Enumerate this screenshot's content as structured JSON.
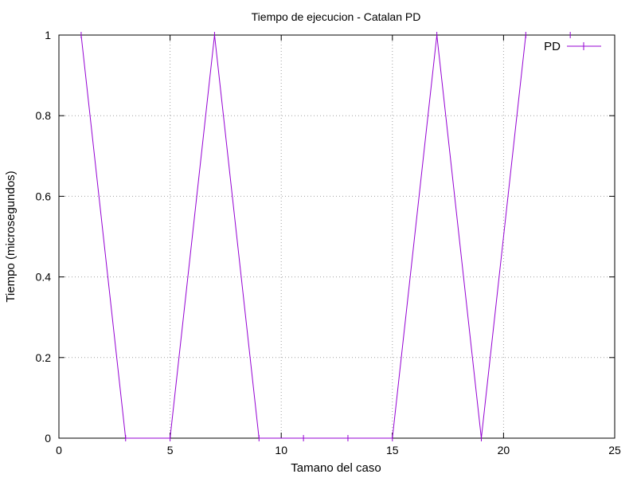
{
  "chart_data": {
    "type": "line",
    "title": "Tiempo de ejecucion - Catalan PD",
    "xlabel": "Tamano del caso",
    "ylabel": "Tiempo (microsegundos)",
    "xlim": [
      0,
      25
    ],
    "ylim": [
      0,
      1
    ],
    "xticks": [
      0,
      5,
      10,
      15,
      20,
      25
    ],
    "yticks": [
      0,
      0.2,
      0.4,
      0.6,
      0.8,
      1
    ],
    "xtick_labels": [
      "0",
      "5",
      "10",
      "15",
      "20",
      "25"
    ],
    "ytick_labels": [
      "0",
      "0.2",
      "0.4",
      "0.6",
      "0.8",
      "1"
    ],
    "grid": true,
    "legend_position": "top-right",
    "series": [
      {
        "name": "PD",
        "color": "#9400d3",
        "x": [
          1,
          3,
          5,
          7,
          9,
          11,
          13,
          15,
          17,
          19,
          21,
          23
        ],
        "y": [
          1,
          0,
          0,
          1,
          0,
          0,
          0,
          0,
          1,
          0,
          1,
          1
        ]
      }
    ]
  }
}
